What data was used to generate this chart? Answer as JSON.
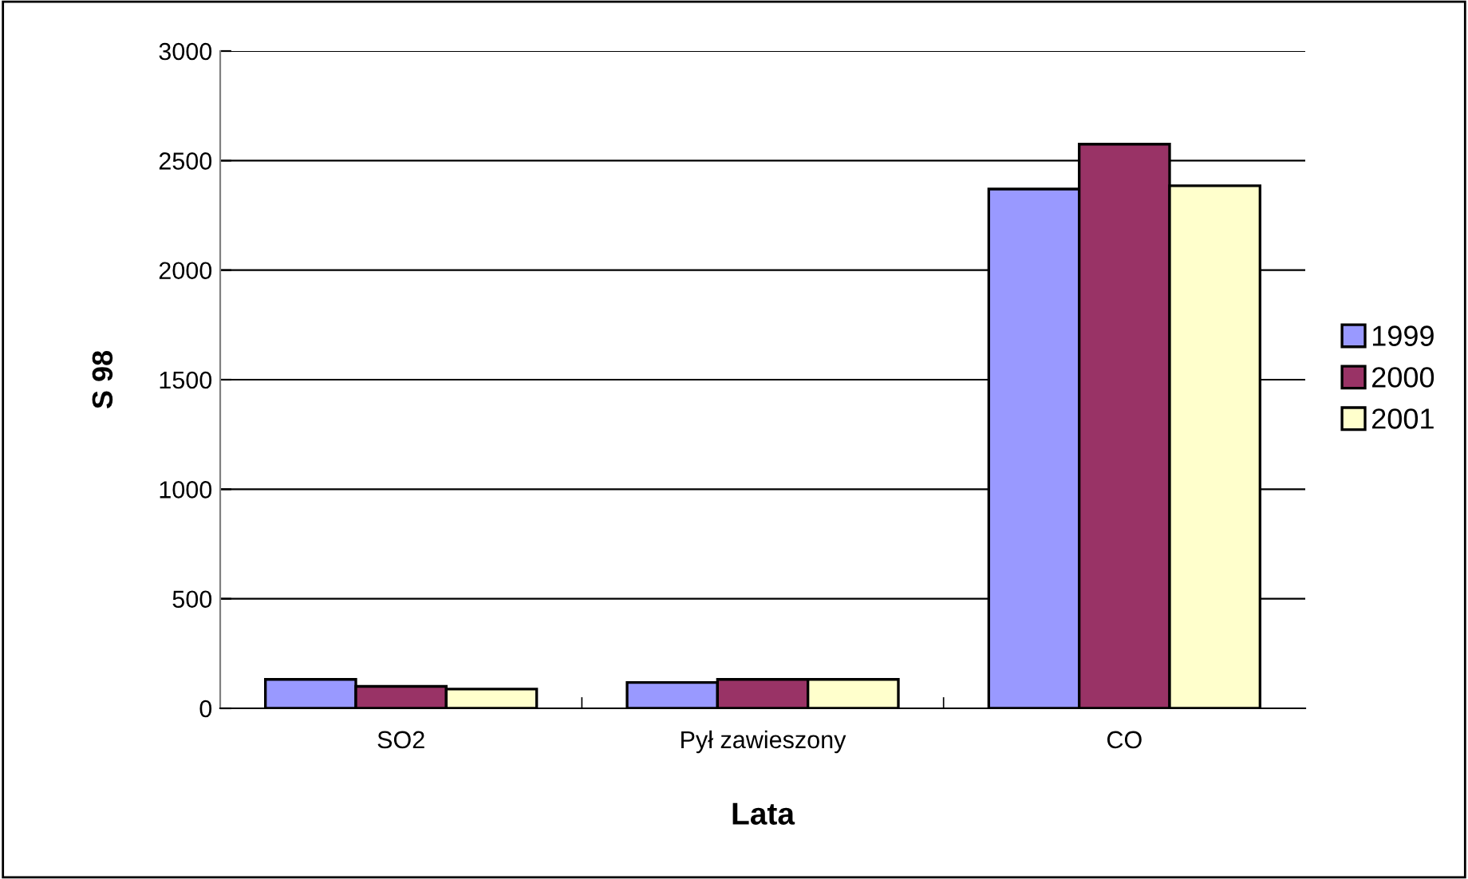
{
  "chart_data": {
    "type": "bar",
    "xlabel": "Lata",
    "ylabel": "S 98",
    "categories": [
      "SO2",
      "Pył zawieszony",
      "CO"
    ],
    "series": [
      {
        "name": "1999",
        "color": "#9999ff",
        "values": [
          132,
          118,
          2370
        ]
      },
      {
        "name": "2000",
        "color": "#993366",
        "values": [
          100,
          132,
          2575
        ]
      },
      {
        "name": "2001",
        "color": "#ffffcc",
        "values": [
          88,
          132,
          2385
        ]
      }
    ],
    "ylim": [
      0,
      3000
    ],
    "yticks": [
      0,
      500,
      1000,
      1500,
      2000,
      2500,
      3000
    ],
    "grid": "y",
    "legend": "right"
  }
}
